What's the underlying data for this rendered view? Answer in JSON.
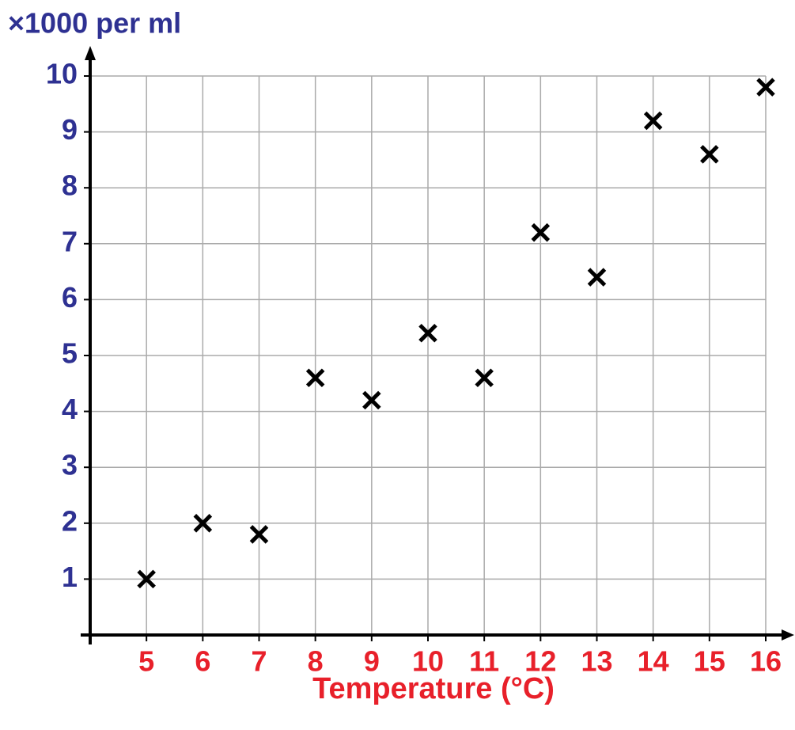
{
  "chart_data": {
    "type": "scatter",
    "y_label": "×1000 per ml",
    "x_label": "Temperature (°C)",
    "x": [
      5,
      6,
      7,
      8,
      9,
      10,
      11,
      12,
      13,
      14,
      15,
      16
    ],
    "values": [
      1.0,
      2.0,
      1.8,
      4.6,
      4.2,
      5.4,
      4.6,
      7.2,
      6.4,
      9.2,
      8.6,
      9.8
    ],
    "color": "#000000",
    "xlim": [
      4,
      16
    ],
    "ylim": [
      0,
      10
    ],
    "xticks": [
      5,
      6,
      7,
      8,
      9,
      10,
      11,
      12,
      13,
      14,
      15,
      16
    ],
    "yticks": [
      1,
      2,
      3,
      4,
      5,
      6,
      7,
      8,
      9,
      10
    ],
    "grid": true,
    "x_label_color": "#e8202a",
    "y_label_color": "#2e3192"
  }
}
